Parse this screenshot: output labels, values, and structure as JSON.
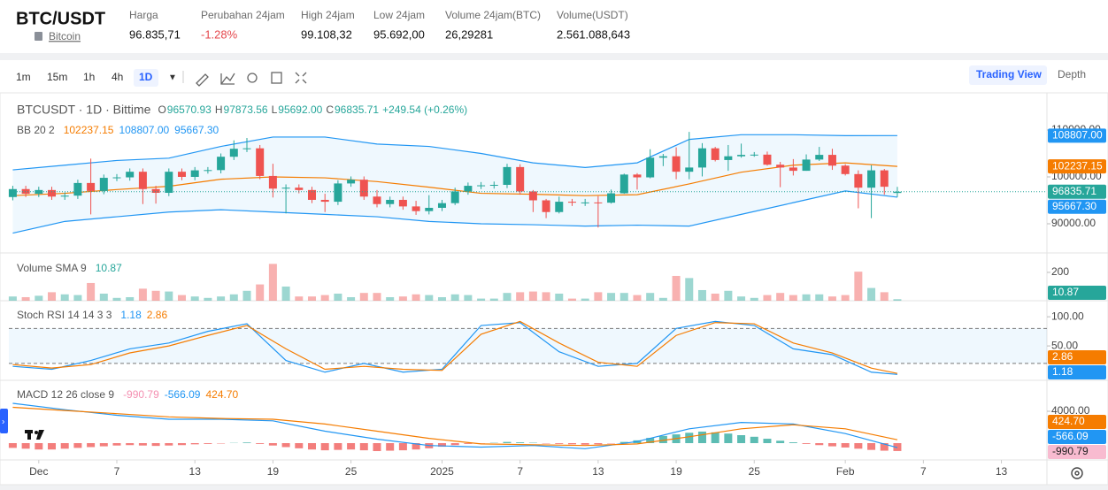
{
  "header": {
    "pair": "BTC/USDT",
    "asset": "Bitcoin",
    "stats": [
      {
        "label": "Harga",
        "value": "96.835,71"
      },
      {
        "label": "Perubahan 24jam",
        "value": "-1.28%",
        "color": "#e5484d"
      },
      {
        "label": "High 24jam",
        "value": "99.108,32"
      },
      {
        "label": "Low 24jam",
        "value": "95.692,00"
      },
      {
        "label": "Volume 24jam(BTC)",
        "value": "26,29281"
      },
      {
        "label": "Volume(USDT)",
        "value": "2.561.088,643"
      }
    ]
  },
  "toolbar": {
    "intervals": [
      "1m",
      "15m",
      "1h",
      "4h",
      "1D"
    ],
    "active": "1D",
    "views": [
      "Trading View",
      "Depth"
    ],
    "active_view": "Trading View"
  },
  "chart_data": [
    {
      "type": "candlestick",
      "title": "BTCUSDT · 1D · Bittime",
      "ohlc": [
        {
          "key": "O",
          "value": "96570.93"
        },
        {
          "key": "H",
          "value": "97873.56"
        },
        {
          "key": "L",
          "value": "95692.00"
        },
        {
          "key": "C",
          "value": "96835.71"
        }
      ],
      "change": "+249.54 (+0.26%)",
      "up_color": "#26a69a",
      "down_color": "#ef5350",
      "open": [
        95700,
        97400,
        96400,
        97200,
        95800,
        96000,
        98700,
        97000,
        99800,
        99900,
        101100,
        97400,
        96600,
        101100,
        100000,
        101400,
        101450,
        104300,
        106000,
        106100,
        100200,
        97500,
        97700,
        97200,
        95100,
        94700,
        98600,
        99400,
        95800,
        94200,
        95100,
        93700,
        92700,
        93400,
        94400,
        96900,
        98100,
        98200,
        98300,
        102100,
        96900,
        95000,
        92500,
        94700,
        94500,
        94550,
        94500,
        96500,
        100500,
        99900,
        104100,
        104400,
        101100,
        102000,
        106100,
        103600,
        104400,
        104700,
        104750,
        102600,
        102000,
        101300,
        103700,
        104700,
        102400,
        100600,
        97700,
        101400,
        96570.93
      ],
      "high": [
        98100,
        98100,
        97900,
        97900,
        96700,
        99400,
        103900,
        100500,
        100600,
        101800,
        101800,
        98100,
        101800,
        101800,
        102100,
        102100,
        105000,
        107800,
        108300,
        106800,
        102800,
        98400,
        98400,
        97900,
        96400,
        99300,
        100100,
        100100,
        97200,
        95800,
        95800,
        94900,
        96100,
        95100,
        97700,
        98800,
        98900,
        99000,
        102800,
        102700,
        97200,
        95300,
        95800,
        95300,
        95300,
        95900,
        97300,
        100700,
        100800,
        105900,
        104900,
        106300,
        109600,
        107200,
        106400,
        106800,
        107100,
        105300,
        105400,
        103200,
        103800,
        104800,
        106400,
        106000,
        102700,
        101400,
        102500,
        101700,
        97873.56
      ],
      "low": [
        95000,
        95700,
        95700,
        95100,
        95100,
        95300,
        92000,
        96300,
        99100,
        99200,
        94200,
        94300,
        95900,
        99300,
        99300,
        100700,
        100750,
        103600,
        105300,
        99500,
        95600,
        92200,
        96500,
        94400,
        92500,
        94000,
        97900,
        95100,
        93500,
        93500,
        93000,
        91900,
        92000,
        92700,
        94000,
        96200,
        97400,
        97500,
        97600,
        96200,
        92500,
        91200,
        92200,
        93800,
        93800,
        89200,
        94300,
        96400,
        97300,
        99700,
        102300,
        99500,
        99500,
        100100,
        103300,
        101300,
        104100,
        104300,
        102400,
        97800,
        100300,
        101300,
        103400,
        101500,
        100300,
        93300,
        91200,
        96200,
        95692
      ],
      "close": [
        97400,
        96400,
        97200,
        95800,
        96000,
        98700,
        97000,
        99800,
        99900,
        101100,
        97400,
        96600,
        101100,
        100000,
        101400,
        101450,
        104300,
        106000,
        106100,
        100200,
        97500,
        97700,
        97200,
        95100,
        94700,
        98600,
        99400,
        95800,
        94200,
        95100,
        93700,
        92700,
        93400,
        94400,
        96900,
        98100,
        98200,
        98300,
        102100,
        96900,
        95000,
        92500,
        94700,
        94500,
        94550,
        94500,
        96500,
        100500,
        99900,
        104100,
        104400,
        101100,
        102000,
        106100,
        103600,
        104400,
        104700,
        104750,
        102600,
        102000,
        101300,
        103700,
        104700,
        102400,
        100600,
        97700,
        101400,
        97900,
        96835.71
      ],
      "bb_legend": {
        "name": "BB 20 2",
        "values": [
          "102237.15",
          "108807.00",
          "95667.30"
        ],
        "colors": [
          "#f57c00",
          "#2196f3",
          "#2196f3"
        ]
      },
      "series": [
        {
          "color": "#2196f3",
          "x": [
            0,
            4,
            8,
            12,
            16,
            20,
            24,
            28,
            32,
            36,
            40,
            44,
            48,
            52,
            56,
            60,
            64,
            68
          ],
          "values": [
            101500,
            102500,
            103500,
            104000,
            106500,
            108500,
            108500,
            107000,
            106500,
            105000,
            103000,
            102000,
            103000,
            108000,
            109000,
            109000,
            108800,
            108807
          ]
        },
        {
          "color": "#f57c00",
          "x": [
            0,
            4,
            8,
            12,
            16,
            20,
            24,
            28,
            32,
            36,
            40,
            44,
            48,
            52,
            56,
            60,
            64,
            68
          ],
          "values": [
            96000,
            96500,
            97300,
            98000,
            99500,
            100000,
            99800,
            99000,
            97800,
            96500,
            96300,
            96000,
            96200,
            98500,
            101000,
            102500,
            103000,
            102237.15
          ]
        },
        {
          "color": "#2196f3",
          "x": [
            0,
            4,
            8,
            12,
            16,
            20,
            24,
            28,
            32,
            36,
            40,
            44,
            48,
            52,
            56,
            60,
            64,
            68
          ],
          "values": [
            88000,
            90500,
            91500,
            92500,
            93000,
            92500,
            92000,
            91500,
            90500,
            90000,
            89800,
            89500,
            89700,
            89500,
            92000,
            94500,
            97000,
            95667.3
          ]
        }
      ],
      "ylim": [
        83960,
        117360
      ],
      "yticks": [
        {
          "value": 110000,
          "label": "110000.00"
        },
        {
          "value": 100000,
          "label": "100000.00"
        },
        {
          "value": 90000,
          "label": "90000.00"
        }
      ]
    },
    {
      "type": "bar",
      "legend": {
        "name": "Volume SMA 9",
        "values": [
          "10.87"
        ]
      },
      "values": [
        30,
        25,
        35,
        60,
        45,
        40,
        125,
        50,
        20,
        25,
        85,
        70,
        65,
        40,
        30,
        20,
        30,
        45,
        70,
        115,
        260,
        100,
        30,
        30,
        40,
        50,
        25,
        55,
        55,
        25,
        30,
        45,
        40,
        25,
        45,
        40,
        15,
        15,
        55,
        60,
        65,
        60,
        50,
        15,
        15,
        60,
        55,
        55,
        40,
        55,
        20,
        175,
        160,
        75,
        50,
        70,
        30,
        20,
        40,
        55,
        40,
        45,
        45,
        30,
        40,
        205,
        90,
        60,
        10.87
      ],
      "ylim": [
        0,
        337
      ],
      "yticks": [
        200
      ]
    },
    {
      "type": "line",
      "legend": {
        "name": "Stoch RSI 14 14 3 3",
        "values": [
          "1.18",
          "2.86"
        ],
        "colors": [
          "#2196f3",
          "#f57c00"
        ]
      },
      "series": [
        {
          "color": "#2196f3",
          "x": [
            0,
            3,
            6,
            9,
            12,
            15,
            18,
            21,
            24,
            27,
            30,
            33,
            36,
            39,
            42,
            45,
            48,
            51,
            54,
            57,
            60,
            63,
            66,
            68
          ],
          "values": [
            15,
            10,
            25,
            45,
            55,
            75,
            88,
            25,
            5,
            20,
            5,
            10,
            85,
            90,
            40,
            15,
            20,
            80,
            92,
            85,
            45,
            35,
            5,
            1.18
          ]
        },
        {
          "color": "#f57c00",
          "x": [
            0,
            3,
            6,
            9,
            12,
            15,
            18,
            21,
            24,
            27,
            30,
            33,
            36,
            39,
            42,
            45,
            48,
            51,
            54,
            57,
            60,
            63,
            66,
            68
          ],
          "values": [
            18,
            12,
            18,
            38,
            50,
            68,
            85,
            45,
            10,
            15,
            10,
            8,
            70,
            92,
            55,
            22,
            15,
            68,
            90,
            88,
            55,
            38,
            12,
            2.86
          ]
        }
      ],
      "band_lines": [
        20,
        80
      ],
      "ylim": [
        -9,
        126
      ],
      "yticks": [
        {
          "value": 100,
          "label": "100.00"
        },
        {
          "value": 50,
          "label": "50.00"
        }
      ]
    },
    {
      "type": "macd",
      "legend": {
        "name": "MACD 12 26 close 9",
        "values": [
          "-990.79",
          "-566.09",
          "424.70"
        ],
        "colors": [
          "#f48fb1",
          "#2196f3",
          "#f57c00"
        ]
      },
      "histogram": [
        -600,
        -700,
        -800,
        -800,
        -700,
        -600,
        -500,
        -400,
        -300,
        -250,
        -300,
        -350,
        -300,
        -250,
        -150,
        -100,
        -50,
        30,
        80,
        -100,
        -300,
        -500,
        -650,
        -800,
        -900,
        -850,
        -800,
        -900,
        -1000,
        -950,
        -900,
        -800,
        -650,
        -450,
        -250,
        -100,
        -30,
        40,
        150,
        100,
        50,
        -50,
        -100,
        -150,
        -200,
        -150,
        -50,
        150,
        350,
        650,
        900,
        1100,
        1300,
        1450,
        1350,
        1200,
        1000,
        800,
        550,
        300,
        100,
        -100,
        -250,
        -400,
        -550,
        -700,
        -850,
        -950,
        -990.79
      ],
      "up_color": "#26a69a",
      "down_color": "#ef5350",
      "series": [
        {
          "color": "#2196f3",
          "x": [
            0,
            4,
            8,
            12,
            16,
            20,
            24,
            28,
            32,
            36,
            40,
            44,
            48,
            52,
            56,
            60,
            64,
            68
          ],
          "values": [
            5000,
            4200,
            3500,
            3000,
            3000,
            2800,
            1500,
            500,
            -300,
            -500,
            -300,
            -700,
            200,
            1800,
            2600,
            2400,
            1200,
            -566.09
          ]
        },
        {
          "color": "#f57c00",
          "x": [
            0,
            4,
            8,
            12,
            16,
            20,
            24,
            28,
            32,
            36,
            40,
            44,
            48,
            52,
            56,
            60,
            64,
            68
          ],
          "values": [
            4500,
            4100,
            3700,
            3300,
            3100,
            3000,
            2400,
            1500,
            600,
            -100,
            -200,
            -300,
            -100,
            800,
            1800,
            2300,
            1800,
            424.7
          ]
        }
      ],
      "ylim": [
        -2111,
        7778
      ],
      "yticks": [
        {
          "value": 4000,
          "label": "4000.00"
        }
      ],
      "xlim": [
        -0.3,
        79.5
      ],
      "xticks": [
        {
          "value": 2,
          "label": "Dec"
        },
        {
          "value": 8,
          "label": "7"
        },
        {
          "value": 14,
          "label": "13"
        },
        {
          "value": 20,
          "label": "19"
        },
        {
          "value": 26,
          "label": "25"
        },
        {
          "value": 33,
          "label": "2025"
        },
        {
          "value": 39,
          "label": "7"
        },
        {
          "value": 45,
          "label": "13"
        },
        {
          "value": 51,
          "label": "19"
        },
        {
          "value": 57,
          "label": "25"
        },
        {
          "value": 64,
          "label": "Feb"
        },
        {
          "value": 70,
          "label": "7"
        },
        {
          "value": 76,
          "label": "13"
        }
      ]
    }
  ]
}
